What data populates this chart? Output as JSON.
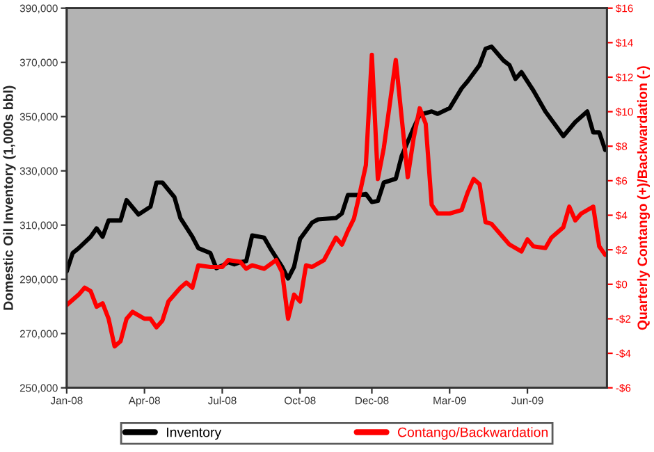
{
  "chart_data": {
    "type": "line",
    "ylabel": "Domestic Oil Inventory (1,000s bbl)",
    "y2label": "Quarterly Contango (+)/Backwardation (-)",
    "xlim": [
      "2008-01-04",
      "2009-09-27"
    ],
    "xticks": [
      {
        "value": "2008-01-04",
        "label": "Jan-08"
      },
      {
        "value": "2008-04-04",
        "label": "Apr-08"
      },
      {
        "value": "2008-07-04",
        "label": "Jul-08"
      },
      {
        "value": "2008-10-03",
        "label": "Oct-08"
      },
      {
        "value": "2008-12-26",
        "label": "Dec-08"
      },
      {
        "value": "2009-03-27",
        "label": "Mar-09"
      },
      {
        "value": "2009-06-26",
        "label": "Jun-09"
      }
    ],
    "ylim": [
      250000,
      390000
    ],
    "yticks": [
      {
        "value": 250000,
        "label": "250,000"
      },
      {
        "value": 270000,
        "label": "270,000"
      },
      {
        "value": 290000,
        "label": "290,000"
      },
      {
        "value": 310000,
        "label": "310,000"
      },
      {
        "value": 330000,
        "label": "330,000"
      },
      {
        "value": 350000,
        "label": "350,000"
      },
      {
        "value": 370000,
        "label": "370,000"
      },
      {
        "value": 390000,
        "label": "390,000"
      }
    ],
    "y2lim": [
      -6,
      16
    ],
    "y2ticks": [
      {
        "value": -6,
        "label": "-$6"
      },
      {
        "value": -4,
        "label": "-$4"
      },
      {
        "value": -2,
        "label": "-$2"
      },
      {
        "value": 0,
        "label": "$0"
      },
      {
        "value": 2,
        "label": "$2"
      },
      {
        "value": 4,
        "label": "$4"
      },
      {
        "value": 6,
        "label": "$6"
      },
      {
        "value": 8,
        "label": "$8"
      },
      {
        "value": 10,
        "label": "$10"
      },
      {
        "value": 12,
        "label": "$12"
      },
      {
        "value": 14,
        "label": "$14"
      },
      {
        "value": 16,
        "label": "$16"
      }
    ],
    "grid": false,
    "legend": "bottom",
    "marker": "none",
    "line_style": "solid",
    "series": [
      {
        "name": "Inventory",
        "color": "#000000",
        "x": [
          "2008-01-04",
          "2008-01-11",
          "2008-01-18",
          "2008-02-01",
          "2008-02-08",
          "2008-02-15",
          "2008-02-22",
          "2008-03-07",
          "2008-03-14",
          "2008-03-28",
          "2008-04-11",
          "2008-04-18",
          "2008-04-25",
          "2008-05-09",
          "2008-05-16",
          "2008-05-30",
          "2008-06-06",
          "2008-06-13",
          "2008-06-20",
          "2008-06-27",
          "2008-07-04",
          "2008-07-11",
          "2008-07-18",
          "2008-07-25",
          "2008-08-01",
          "2008-08-08",
          "2008-08-22",
          "2008-08-29",
          "2008-09-12",
          "2008-09-19",
          "2008-09-26",
          "2008-10-03",
          "2008-10-17",
          "2008-10-24",
          "2008-11-14",
          "2008-11-21",
          "2008-11-28",
          "2008-12-12",
          "2008-12-19",
          "2008-12-26",
          "2009-01-02",
          "2009-01-09",
          "2009-01-23",
          "2009-01-30",
          "2009-02-13",
          "2009-02-20",
          "2009-03-06",
          "2009-03-13",
          "2009-03-27",
          "2009-04-10",
          "2009-04-17",
          "2009-05-01",
          "2009-05-08",
          "2009-05-15",
          "2009-05-29",
          "2009-06-05",
          "2009-06-12",
          "2009-06-19",
          "2009-07-03",
          "2009-07-17",
          "2009-07-31",
          "2009-08-07",
          "2009-08-21",
          "2009-09-04",
          "2009-09-11",
          "2009-09-18",
          "2009-09-25"
        ],
        "values": [
          292900,
          299700,
          301500,
          305700,
          308800,
          305700,
          311700,
          311700,
          319200,
          313900,
          316800,
          325700,
          325700,
          320300,
          312600,
          305700,
          301500,
          300600,
          299700,
          294100,
          295100,
          296300,
          295500,
          296300,
          296700,
          306200,
          305400,
          301500,
          294600,
          290300,
          294600,
          304900,
          310900,
          312100,
          312600,
          314300,
          321100,
          321100,
          321500,
          318500,
          318900,
          325700,
          327100,
          335600,
          345900,
          350700,
          351900,
          351000,
          353100,
          360400,
          363000,
          369000,
          375000,
          375800,
          370700,
          369000,
          363900,
          366400,
          359600,
          351900,
          345900,
          342800,
          348000,
          351900,
          344200,
          344200,
          337700
        ]
      },
      {
        "name": "Contango/Backwardation",
        "color": "#ff0000",
        "axis": "y2",
        "x": [
          "2008-01-04",
          "2008-01-18",
          "2008-01-25",
          "2008-02-01",
          "2008-02-08",
          "2008-02-15",
          "2008-02-22",
          "2008-02-29",
          "2008-03-07",
          "2008-03-14",
          "2008-03-21",
          "2008-04-04",
          "2008-04-11",
          "2008-04-18",
          "2008-04-25",
          "2008-05-02",
          "2008-05-16",
          "2008-05-23",
          "2008-05-30",
          "2008-06-06",
          "2008-06-20",
          "2008-07-04",
          "2008-07-11",
          "2008-07-25",
          "2008-08-01",
          "2008-08-08",
          "2008-08-22",
          "2008-09-05",
          "2008-09-12",
          "2008-09-19",
          "2008-09-26",
          "2008-10-03",
          "2008-10-10",
          "2008-10-17",
          "2008-10-31",
          "2008-11-14",
          "2008-11-21",
          "2008-11-28",
          "2008-12-05",
          "2008-12-12",
          "2008-12-19",
          "2008-12-26",
          "2009-01-02",
          "2009-01-09",
          "2009-01-23",
          "2009-02-06",
          "2009-02-13",
          "2009-02-20",
          "2009-02-27",
          "2009-03-06",
          "2009-03-13",
          "2009-03-27",
          "2009-04-10",
          "2009-04-17",
          "2009-04-24",
          "2009-05-01",
          "2009-05-08",
          "2009-05-15",
          "2009-06-05",
          "2009-06-19",
          "2009-06-26",
          "2009-07-03",
          "2009-07-17",
          "2009-07-24",
          "2009-08-07",
          "2009-08-14",
          "2009-08-21",
          "2009-08-28",
          "2009-09-11",
          "2009-09-18",
          "2009-09-25"
        ],
        "values": [
          -1.2,
          -0.6,
          -0.2,
          -0.4,
          -1.3,
          -1.1,
          -2.0,
          -3.6,
          -3.3,
          -2.0,
          -1.6,
          -2.0,
          -2.0,
          -2.5,
          -2.1,
          -1.0,
          -0.2,
          0.1,
          -0.2,
          1.1,
          1.0,
          1.0,
          1.4,
          1.3,
          0.9,
          1.1,
          0.9,
          1.4,
          0.7,
          -2.0,
          -0.6,
          -1.0,
          1.1,
          1.0,
          1.4,
          2.7,
          2.3,
          3.1,
          3.8,
          5.3,
          6.9,
          13.3,
          6.1,
          7.9,
          13.0,
          6.2,
          8.5,
          10.2,
          9.3,
          4.6,
          4.1,
          4.1,
          4.3,
          5.3,
          6.1,
          5.8,
          3.6,
          3.5,
          2.3,
          1.9,
          2.6,
          2.2,
          2.1,
          2.7,
          3.3,
          4.5,
          3.7,
          4.1,
          4.5,
          2.2,
          1.7
        ]
      }
    ]
  }
}
